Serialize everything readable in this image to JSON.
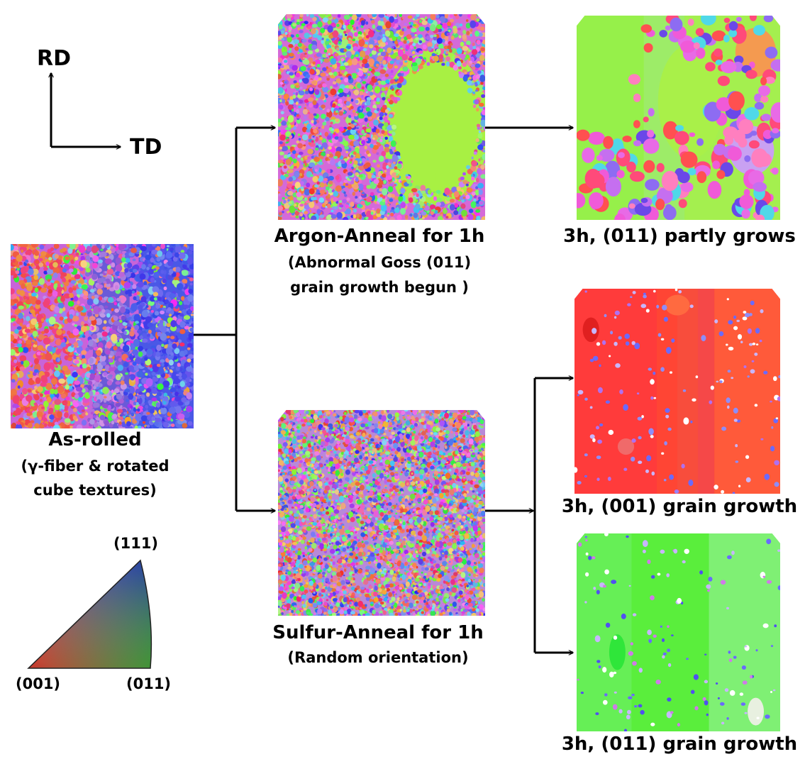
{
  "axes": {
    "rd": "RD",
    "td": "TD"
  },
  "samples": {
    "as_rolled": {
      "title": "As-rolled",
      "line1": "(γ-fiber & rotated",
      "line2": "cube textures)"
    },
    "argon_1h": {
      "title": "Argon-Anneal for 1h",
      "line1": "(Abnormal Goss (011)",
      "line2": "grain growth begun )"
    },
    "sulfur_1h": {
      "title": "Sulfur-Anneal for 1h",
      "line1": "(Random orientation)"
    },
    "argon_3h": {
      "title": "3h, (011) partly grows"
    },
    "sulfur_3h_001": {
      "title": "3h, (001) grain growth"
    },
    "sulfur_3h_011": {
      "title": "3h, (011) grain growth"
    }
  },
  "legend": {
    "top": "(111)",
    "left": "(001)",
    "right": "(011)"
  },
  "colors": {
    "orientation_001": "#ff2a2a",
    "orientation_011": "#3cff3c",
    "orientation_111": "#3a3cff",
    "arrow": "#000000"
  }
}
